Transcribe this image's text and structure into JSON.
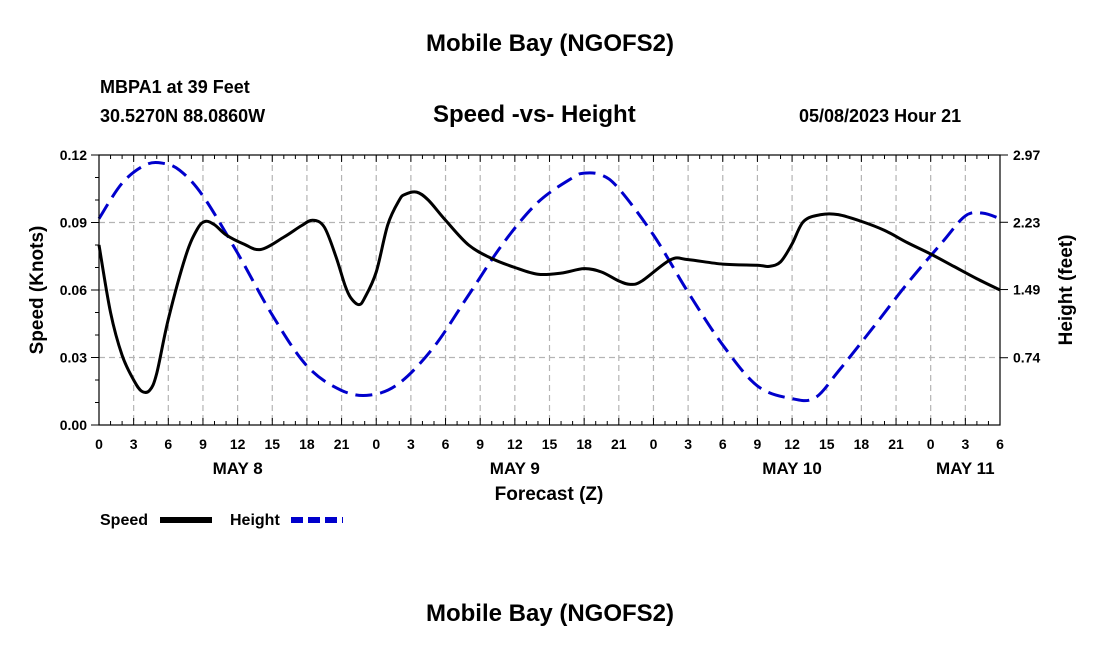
{
  "header": {
    "title": "Mobile Bay (NGOFS2)",
    "station": "MBPA1 at 39 Feet",
    "coordinates": "30.5270N  88.0860W",
    "subtitle": "Speed -vs- Height",
    "date": "05/08/2023 Hour 21",
    "footer_title": "Mobile Bay (NGOFS2)"
  },
  "chart_data": {
    "type": "line",
    "title": "Speed -vs- Height",
    "xlabel": "Forecast (Z)",
    "ylabel": "Speed (Knots)",
    "y2label": "Height (feet)",
    "x_unit": "hours since 00Z May 8",
    "xlim": [
      0,
      78
    ],
    "ylim": [
      0,
      0.12
    ],
    "y2lim": [
      0,
      2.97
    ],
    "x_ticks": [
      0,
      3,
      6,
      9,
      12,
      15,
      18,
      21,
      24,
      27,
      30,
      33,
      36,
      39,
      42,
      45,
      48,
      51,
      54,
      57,
      60,
      63,
      66,
      69,
      72,
      75,
      78
    ],
    "x_tick_labels": [
      "0",
      "3",
      "6",
      "9",
      "12",
      "15",
      "18",
      "21",
      "0",
      "3",
      "6",
      "9",
      "12",
      "15",
      "18",
      "21",
      "0",
      "3",
      "6",
      "9",
      "12",
      "15",
      "18",
      "21",
      "0",
      "3",
      "6"
    ],
    "day_labels": [
      {
        "label": "MAY 8",
        "x": 12
      },
      {
        "label": "MAY 9",
        "x": 36
      },
      {
        "label": "MAY 10",
        "x": 60
      },
      {
        "label": "MAY 11",
        "x": 75
      }
    ],
    "y_ticks": [
      0,
      0.03,
      0.06,
      0.09,
      0.12
    ],
    "y_tick_labels": [
      "0.00",
      "0.03",
      "0.06",
      "0.09",
      "0.12"
    ],
    "y2_ticks": [
      0.74,
      1.49,
      2.23,
      2.97
    ],
    "y2_tick_labels": [
      "0.74",
      "1.49",
      "2.23",
      "2.97"
    ],
    "grid": true,
    "series": [
      {
        "name": "Speed",
        "axis": "left",
        "color": "#000000",
        "dash": "solid",
        "x": [
          0,
          1,
          2,
          3,
          3.7,
          4.4,
          5,
          6,
          7.5,
          8.5,
          9.2,
          10,
          11,
          12.5,
          14,
          16,
          17.5,
          18.5,
          19.5,
          20.5,
          21.3,
          21.8,
          22.5,
          23,
          24,
          25,
          26,
          26.5,
          27.5,
          28.5,
          30,
          32,
          34,
          36,
          38,
          40,
          42,
          43.5,
          45,
          46,
          47,
          49.5,
          51,
          54,
          57,
          58,
          59,
          60,
          61,
          62.5,
          64,
          66,
          68,
          70,
          72,
          74,
          76,
          78
        ],
        "values": [
          0.08,
          0.05,
          0.031,
          0.02,
          0.015,
          0.0155,
          0.023,
          0.047,
          0.075,
          0.087,
          0.0905,
          0.089,
          0.0845,
          0.0805,
          0.078,
          0.0835,
          0.0885,
          0.091,
          0.088,
          0.075,
          0.062,
          0.0565,
          0.0535,
          0.0565,
          0.068,
          0.089,
          0.1,
          0.1025,
          0.1035,
          0.1,
          0.091,
          0.08,
          0.074,
          0.07,
          0.067,
          0.0675,
          0.0695,
          0.068,
          0.064,
          0.0625,
          0.064,
          0.0735,
          0.0735,
          0.0715,
          0.071,
          0.0705,
          0.0725,
          0.0805,
          0.0905,
          0.0935,
          0.0935,
          0.0905,
          0.0865,
          0.081,
          0.076,
          0.0705,
          0.065,
          0.06
        ]
      },
      {
        "name": "Height",
        "axis": "right",
        "color": "#0000cc",
        "dash": "dashed",
        "x": [
          0,
          2,
          4,
          5.5,
          7,
          9,
          12,
          15,
          18,
          21,
          23.5,
          26,
          29,
          32,
          35,
          38,
          41,
          42,
          43.5,
          45,
          48,
          51,
          54,
          57,
          60,
          62,
          64,
          67,
          70,
          73,
          75,
          76.5,
          78
        ],
        "values": [
          2.27,
          2.66,
          2.86,
          2.88,
          2.8,
          2.52,
          1.89,
          1.21,
          0.65,
          0.38,
          0.33,
          0.46,
          0.86,
          1.43,
          2.0,
          2.45,
          2.72,
          2.77,
          2.75,
          2.6,
          2.09,
          1.46,
          0.88,
          0.43,
          0.29,
          0.3,
          0.59,
          1.07,
          1.56,
          2.01,
          2.3,
          2.33,
          2.27
        ]
      }
    ],
    "legend": [
      {
        "label": "Speed",
        "color": "#000000",
        "dash": "solid"
      },
      {
        "label": "Height",
        "color": "#0000cc",
        "dash": "dashed"
      }
    ],
    "legend_position": "bottom-left"
  }
}
